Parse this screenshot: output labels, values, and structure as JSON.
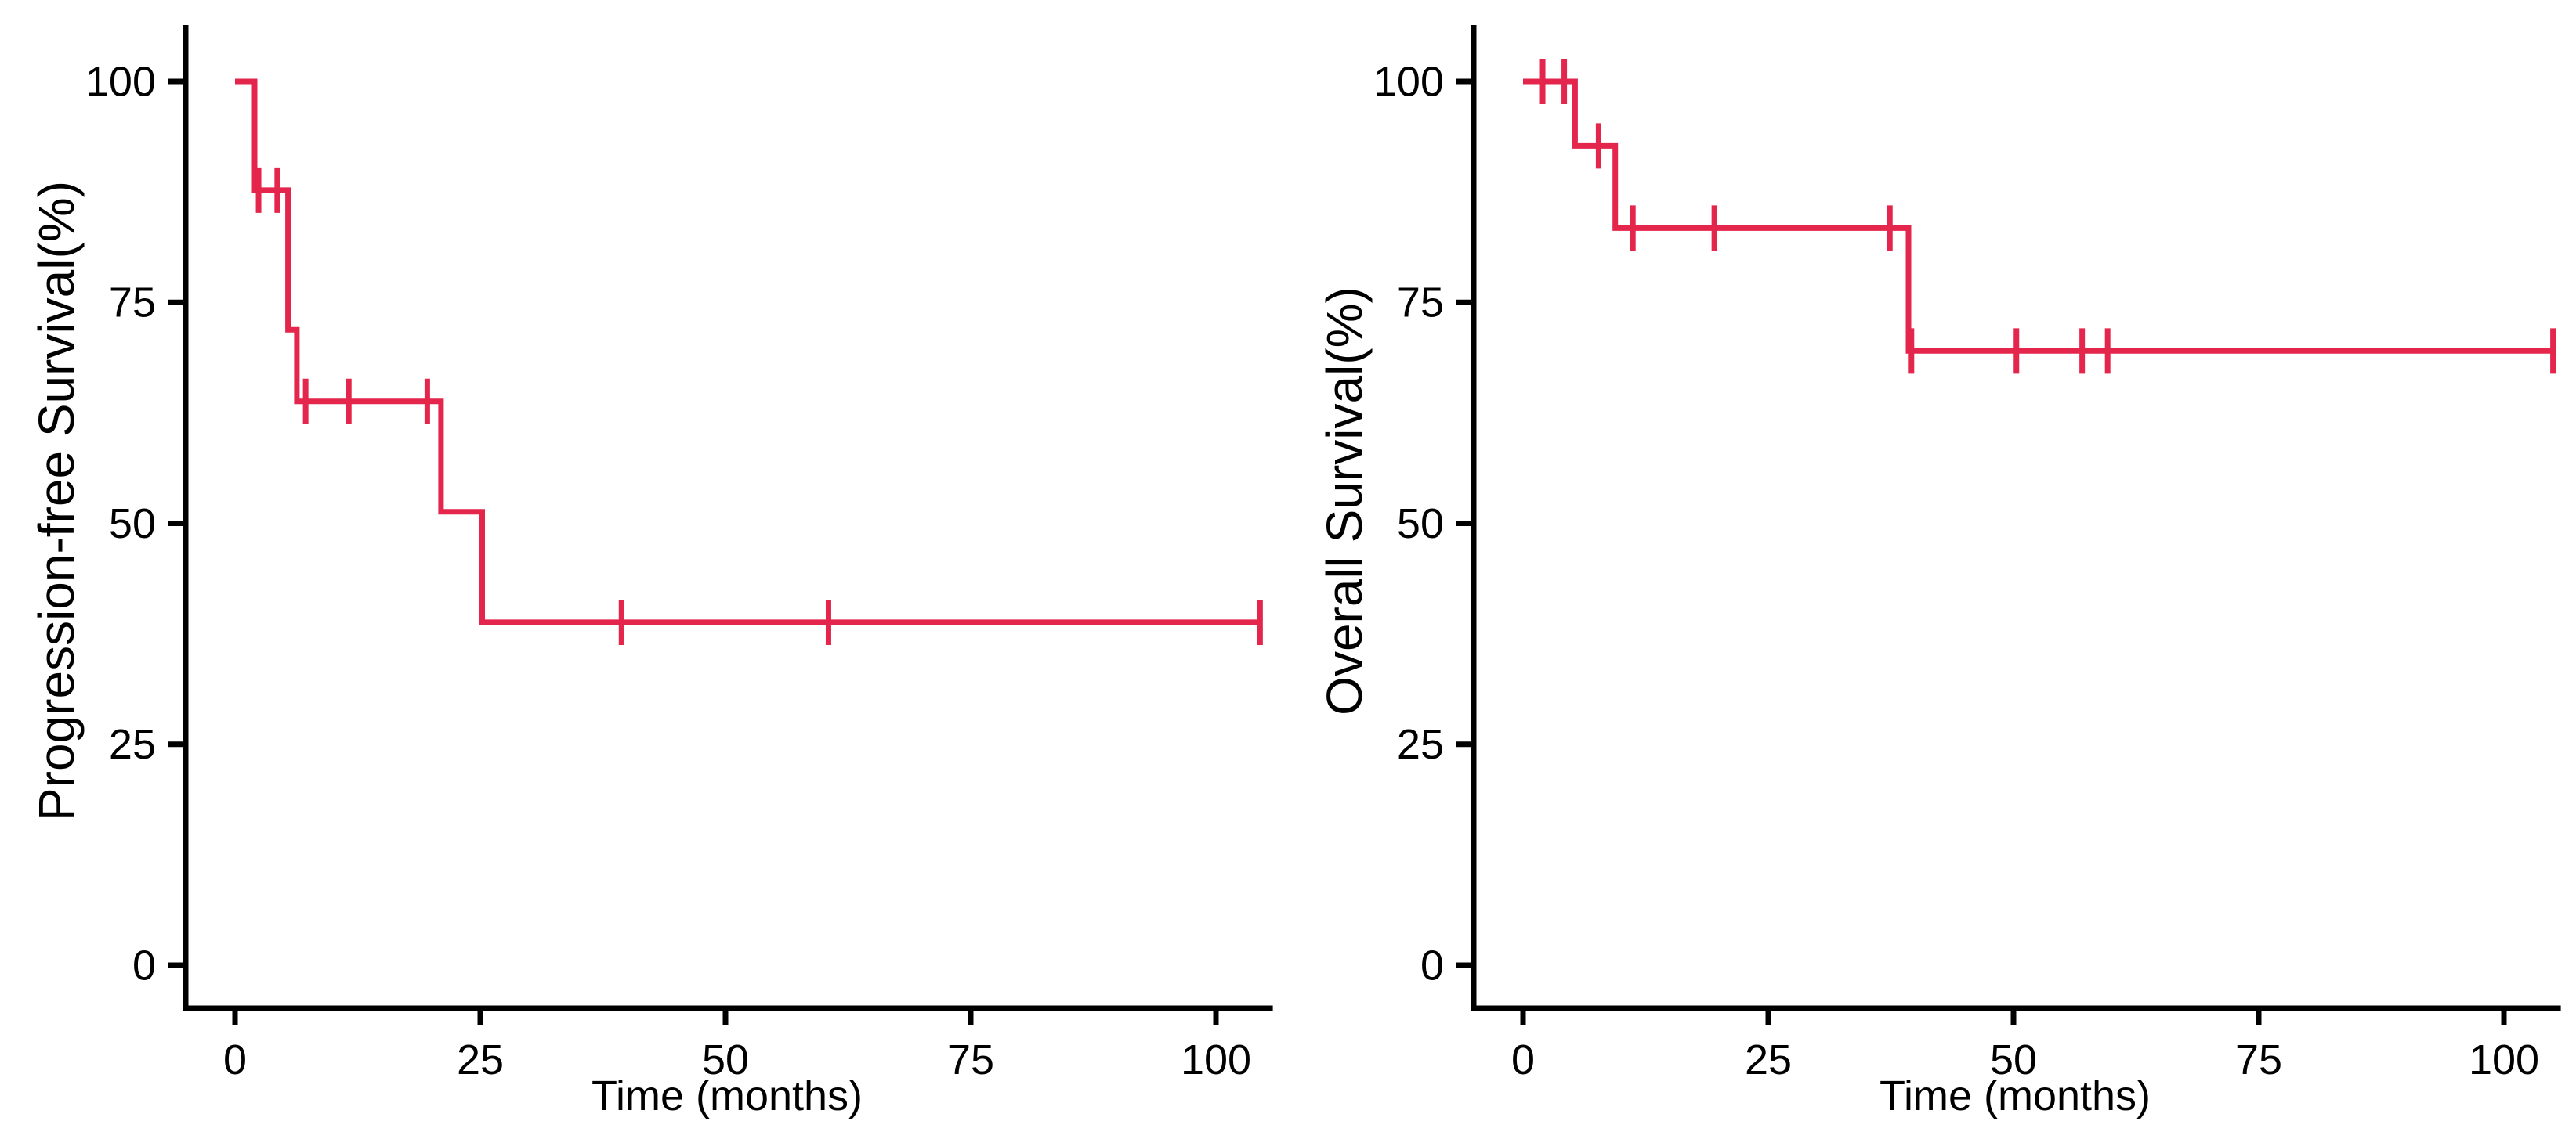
{
  "figure": {
    "kind": "kaplan-meier-survival-figure",
    "background": "#ffffff",
    "panels_order": [
      "progression-free-survival",
      "overall-survival"
    ]
  },
  "colors": {
    "curve": "#e4254c",
    "axis": "#000000",
    "tick_text": "#000000",
    "label_text": "#000000"
  },
  "chart_data": [
    {
      "type": "line",
      "subtype": "kaplan-meier-step",
      "panel": "left",
      "title": "",
      "xlabel": "Time (months)",
      "ylabel": "Progression-free Survival(%)",
      "xlim": [
        0,
        105
      ],
      "ylim": [
        0,
        100
      ],
      "xticks": [
        0,
        25,
        50,
        75,
        100
      ],
      "yticks": [
        0,
        25,
        50,
        75,
        100
      ],
      "grid": false,
      "legend": "none",
      "series": [
        {
          "name": "Progression-free Survival",
          "color": "#e4254c",
          "steps": [
            [
              0,
              100
            ],
            [
              2,
              100
            ],
            [
              2,
              87.7
            ],
            [
              5.4,
              87.7
            ],
            [
              5.4,
              71.9
            ],
            [
              6.3,
              71.9
            ],
            [
              6.3,
              63.8
            ],
            [
              21,
              63.8
            ],
            [
              21,
              51.3
            ],
            [
              25.2,
              51.3
            ],
            [
              25.2,
              38.8
            ],
            [
              104.5,
              38.8
            ]
          ],
          "censors": [
            [
              2.4,
              87.7
            ],
            [
              4.3,
              87.7
            ],
            [
              7.2,
              63.8
            ],
            [
              11.6,
              63.8
            ],
            [
              19.6,
              63.8
            ],
            [
              39.4,
              38.8
            ],
            [
              60.5,
              38.8
            ],
            [
              104.5,
              38.8
            ]
          ]
        }
      ]
    },
    {
      "type": "line",
      "subtype": "kaplan-meier-step",
      "panel": "right",
      "title": "",
      "xlabel": "Time (months)",
      "ylabel": "Overall Survival(%)",
      "xlim": [
        0,
        105
      ],
      "ylim": [
        0,
        100
      ],
      "xticks": [
        0,
        25,
        50,
        75,
        100
      ],
      "yticks": [
        0,
        25,
        50,
        75,
        100
      ],
      "grid": false,
      "legend": "none",
      "series": [
        {
          "name": "Overall Survival",
          "color": "#e4254c",
          "steps": [
            [
              0,
              100
            ],
            [
              5.3,
              100
            ],
            [
              5.3,
              92.7
            ],
            [
              9.4,
              92.7
            ],
            [
              9.4,
              83.4
            ],
            [
              39.3,
              83.4
            ],
            [
              39.3,
              69.5
            ],
            [
              105,
              69.5
            ]
          ],
          "censors": [
            [
              2.0,
              100
            ],
            [
              4.2,
              100
            ],
            [
              7.7,
              92.7
            ],
            [
              11.2,
              83.4
            ],
            [
              19.5,
              83.4
            ],
            [
              37.4,
              83.4
            ],
            [
              39.6,
              69.5
            ],
            [
              50.3,
              69.5
            ],
            [
              57,
              69.5
            ],
            [
              59.6,
              69.5
            ],
            [
              105,
              69.5
            ]
          ]
        }
      ]
    }
  ]
}
